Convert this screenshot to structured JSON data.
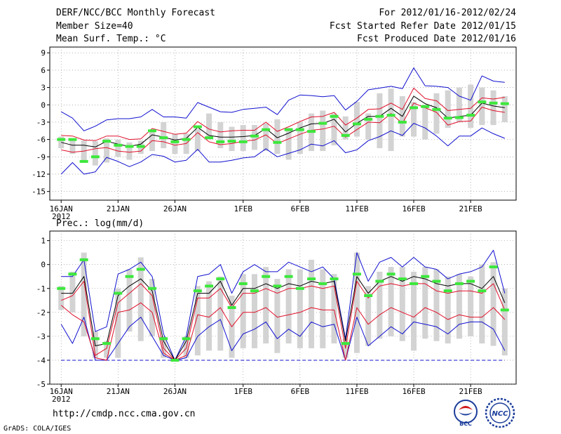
{
  "header": {
    "title": "DERF/NCC/BCC Monthly Forecast",
    "member_size": "Member Size=40",
    "variable": "Mean Surf. Temp.: °C",
    "period": "For 2012/01/16-2012/02/24",
    "fcst_started": "Fcst Started Refer Date 2012/01/15",
    "fcst_produced": "Fcst Produced Date 2012/01/16"
  },
  "footer": {
    "url": "http://cmdp.ncc.cma.gov.cn",
    "credit": "GrADS: COLA/IGES",
    "logos": [
      {
        "name": "bcc-logo",
        "text": "BCC"
      },
      {
        "name": "ncc-logo",
        "text": "NCC"
      }
    ]
  },
  "colors": {
    "box": "#d3d3d3",
    "mean": "#000000",
    "inner": "#e0102a",
    "outer": "#1010d0",
    "obs": "#3ce83c",
    "grid": "#888888"
  },
  "chart_data": [
    {
      "type": "line",
      "name": "temperature-panel",
      "title": "Mean Surf. Temp.: °C",
      "x_ticks": [
        {
          "day": 0,
          "label": "16JAN",
          "sub": "2012"
        },
        {
          "day": 5,
          "label": "21JAN"
        },
        {
          "day": 10,
          "label": "26JAN"
        },
        {
          "day": 16,
          "label": "1FEB"
        },
        {
          "day": 21,
          "label": "6FEB"
        },
        {
          "day": 26,
          "label": "11FEB"
        },
        {
          "day": 31,
          "label": "16FEB"
        },
        {
          "day": 36,
          "label": "21FEB"
        }
      ],
      "y_ticks": [
        9,
        6,
        3,
        0,
        -3,
        -6,
        -9,
        -12,
        -15
      ],
      "xlim": [
        -1,
        40
      ],
      "ylim": [
        -16.5,
        10
      ],
      "series": [
        {
          "name": "box-max",
          "values": [
            -5.5,
            -5.8,
            -6.2,
            -6.3,
            -5.8,
            -6.0,
            -6.5,
            -6.2,
            -4.5,
            -3.0,
            -5.0,
            -5.0,
            -4.2,
            -1.5,
            -3.0,
            -3.8,
            -3.5,
            -3.5,
            -3.2,
            -2.5,
            -4.0,
            -3.0,
            -1.5,
            -1.0,
            -1.5,
            -2.0,
            0.5,
            -1.5,
            2.0,
            2.8,
            1.5,
            0.5,
            0.0,
            2.0,
            2.5,
            3.0,
            3.5,
            3.0,
            2.5,
            1.5
          ]
        },
        {
          "name": "box-min",
          "values": [
            -7.5,
            -8.5,
            -10.0,
            -10.5,
            -10.0,
            -9.0,
            -9.5,
            -8.5,
            -8.0,
            -7.5,
            -8.5,
            -8.5,
            -8.0,
            -6.0,
            -7.5,
            -8.0,
            -8.0,
            -7.8,
            -8.0,
            -8.5,
            -9.5,
            -8.5,
            -8.0,
            -8.0,
            -7.0,
            -6.0,
            -5.5,
            -6.0,
            -7.5,
            -8.0,
            -5.5,
            -5.5,
            -6.0,
            -5.0,
            -4.0,
            -3.0,
            -4.0,
            -3.5,
            -3.5,
            -3.0
          ]
        },
        {
          "name": "mean",
          "values": [
            -6.5,
            -7.0,
            -7.0,
            -7.3,
            -6.3,
            -6.8,
            -7.2,
            -6.8,
            -5.2,
            -5.6,
            -6.1,
            -5.8,
            -3.9,
            -5.3,
            -5.6,
            -5.6,
            -5.5,
            -5.3,
            -4.1,
            -5.7,
            -4.9,
            -4.0,
            -3.3,
            -3.2,
            -2.5,
            -4.7,
            -3.2,
            -2.0,
            -2.0,
            -0.6,
            -2.0,
            1.5,
            0.2,
            -0.5,
            -2.3,
            -2.0,
            -1.8,
            0.3,
            -0.2,
            -0.5
          ]
        },
        {
          "name": "upper-inner",
          "values": [
            -5.3,
            -5.4,
            -6.1,
            -6.2,
            -5.4,
            -5.4,
            -6.0,
            -5.9,
            -4.1,
            -4.6,
            -5.1,
            -4.9,
            -2.9,
            -4.2,
            -4.7,
            -4.5,
            -4.4,
            -4.4,
            -3.0,
            -4.6,
            -3.8,
            -2.9,
            -2.1,
            -2.0,
            -1.3,
            -3.5,
            -2.3,
            -0.8,
            -0.7,
            0.3,
            -0.8,
            2.9,
            1.1,
            0.7,
            -1.0,
            -0.8,
            -0.6,
            1.2,
            1.0,
            1.3
          ]
        },
        {
          "name": "lower-inner",
          "values": [
            -7.8,
            -8.2,
            -8.0,
            -7.6,
            -7.4,
            -8.0,
            -8.2,
            -8.0,
            -6.2,
            -6.4,
            -7.0,
            -6.7,
            -4.8,
            -6.4,
            -6.9,
            -6.7,
            -6.3,
            -6.1,
            -5.2,
            -6.7,
            -5.9,
            -5.1,
            -4.4,
            -4.2,
            -3.7,
            -5.6,
            -4.3,
            -3.0,
            -3.1,
            -1.5,
            -3.2,
            0.3,
            -0.5,
            -1.3,
            -3.5,
            -2.9,
            -2.8,
            -0.4,
            -1.0,
            -1.3
          ]
        },
        {
          "name": "upper-outer",
          "values": [
            -1.2,
            -2.3,
            -4.5,
            -3.7,
            -2.6,
            -2.4,
            -2.4,
            -2.1,
            -0.8,
            -2.1,
            -2.1,
            -2.3,
            0.4,
            -0.4,
            -1.2,
            -1.3,
            -0.8,
            -0.6,
            -0.4,
            -1.7,
            0.8,
            1.7,
            1.6,
            1.4,
            1.6,
            -0.9,
            0.6,
            2.6,
            2.9,
            3.2,
            2.8,
            6.4,
            3.3,
            3.2,
            3.0,
            1.5,
            0.8,
            5.0,
            4.1,
            3.9
          ]
        },
        {
          "name": "lower-outer",
          "values": [
            -12.0,
            -10.0,
            -12.0,
            -11.6,
            -9.1,
            -9.8,
            -10.7,
            -9.9,
            -8.6,
            -8.9,
            -9.9,
            -9.6,
            -7.7,
            -9.9,
            -9.9,
            -9.6,
            -9.2,
            -9.0,
            -7.6,
            -9.0,
            -8.4,
            -7.8,
            -6.8,
            -7.1,
            -6.2,
            -8.3,
            -7.8,
            -6.2,
            -5.5,
            -4.5,
            -5.3,
            -3.2,
            -4.0,
            -5.4,
            -7.1,
            -5.4,
            -5.4,
            -4.0,
            -5.0,
            -5.8
          ]
        },
        {
          "name": "obs",
          "values": [
            -6.0,
            -6.0,
            -9.8,
            -9.0,
            -6.3,
            -7.0,
            -7.2,
            -7.2,
            -4.5,
            -5.7,
            -6.4,
            -6.0,
            -3.8,
            -5.7,
            -6.4,
            -6.3,
            -6.4,
            -5.4,
            -4.3,
            -6.5,
            -4.3,
            -4.3,
            -4.6,
            -3.2,
            -2.0,
            -5.3,
            -3.3,
            -2.5,
            -2.0,
            -1.8,
            -3.0,
            -0.5,
            -0.3,
            -0.8,
            -2.3,
            -2.2,
            -1.8,
            0.5,
            0.3,
            0.2
          ]
        }
      ]
    },
    {
      "type": "line",
      "name": "precipitation-panel",
      "title": "Prec.: log(mm/d)",
      "x_ticks": [
        {
          "day": 0,
          "label": "16JAN",
          "sub": "2012"
        },
        {
          "day": 5,
          "label": "21JAN"
        },
        {
          "day": 10,
          "label": "26JAN"
        },
        {
          "day": 16,
          "label": "1FEB"
        },
        {
          "day": 21,
          "label": "6FEB"
        },
        {
          "day": 26,
          "label": "11FEB"
        },
        {
          "day": 31,
          "label": "16FEB"
        },
        {
          "day": 36,
          "label": "21FEB"
        }
      ],
      "y_ticks": [
        1,
        0,
        -1,
        -2,
        -3,
        -4,
        -5
      ],
      "xlim": [
        -1,
        40
      ],
      "ylim": [
        -5,
        1.4
      ],
      "series": [
        {
          "name": "box-max",
          "values": [
            -0.9,
            -0.3,
            0.5,
            -2.8,
            -3.2,
            -1.0,
            -0.2,
            0.3,
            -0.6,
            -3.0,
            -4.0,
            -3.0,
            -0.9,
            -0.7,
            -0.5,
            -1.3,
            -0.4,
            -0.4,
            -0.1,
            -0.6,
            -0.2,
            -0.2,
            0.2,
            -0.2,
            -0.4,
            -3.1,
            0.5,
            -0.9,
            -0.3,
            -0.1,
            -0.1,
            -0.3,
            -0.1,
            -0.2,
            -0.5,
            -0.4,
            -0.5,
            0.0,
            0.1,
            -1.0
          ]
        },
        {
          "name": "box-min",
          "values": [
            -1.9,
            -2.0,
            -3.0,
            -3.9,
            -3.9,
            -3.9,
            -2.8,
            -3.2,
            -3.0,
            -3.9,
            -4.0,
            -3.9,
            -3.8,
            -3.6,
            -3.6,
            -3.9,
            -3.5,
            -3.5,
            -3.3,
            -3.7,
            -3.3,
            -3.5,
            -3.5,
            -3.5,
            -3.3,
            -3.9,
            -3.7,
            -3.4,
            -3.1,
            -3.0,
            -3.2,
            -3.6,
            -3.1,
            -3.2,
            -3.3,
            -3.1,
            -3.0,
            -3.3,
            -3.4,
            -3.8
          ]
        },
        {
          "name": "mean",
          "values": [
            -1.2,
            -1.2,
            -0.5,
            -3.4,
            -3.3,
            -1.3,
            -0.9,
            -0.6,
            -1.1,
            -3.2,
            -4.0,
            -3.2,
            -1.2,
            -1.2,
            -0.7,
            -1.7,
            -1.0,
            -1.0,
            -0.8,
            -1.0,
            -0.8,
            -0.9,
            -0.7,
            -0.8,
            -0.7,
            -3.2,
            -0.5,
            -1.2,
            -0.7,
            -0.5,
            -0.7,
            -0.5,
            -0.6,
            -0.8,
            -0.9,
            -0.8,
            -0.8,
            -1.0,
            -0.5,
            -1.6
          ]
        },
        {
          "name": "upper-inner",
          "values": [
            -1.5,
            -1.3,
            -0.7,
            -3.8,
            -3.5,
            -1.6,
            -1.2,
            -0.8,
            -1.3,
            -3.5,
            -4.0,
            -3.5,
            -1.4,
            -1.4,
            -1.0,
            -1.8,
            -1.2,
            -1.2,
            -1.0,
            -1.2,
            -1.0,
            -1.0,
            -0.9,
            -1.0,
            -0.9,
            -3.5,
            -0.7,
            -1.4,
            -0.9,
            -0.8,
            -0.9,
            -0.8,
            -0.8,
            -1.1,
            -1.2,
            -1.1,
            -1.1,
            -1.2,
            -0.8,
            -1.9
          ]
        },
        {
          "name": "lower-inner",
          "values": [
            -1.7,
            -2.1,
            -2.4,
            -3.9,
            -4.0,
            -2.0,
            -1.9,
            -1.6,
            -2.0,
            -3.7,
            -4.0,
            -3.8,
            -2.1,
            -2.2,
            -1.8,
            -2.6,
            -2.0,
            -2.0,
            -1.8,
            -2.2,
            -2.1,
            -2.0,
            -1.8,
            -1.9,
            -1.9,
            -4.0,
            -1.8,
            -2.5,
            -2.1,
            -1.8,
            -2.0,
            -2.2,
            -1.8,
            -2.0,
            -2.3,
            -2.1,
            -2.2,
            -2.2,
            -1.8,
            -2.3
          ]
        },
        {
          "name": "upper-outer",
          "values": [
            -0.5,
            -0.5,
            0.2,
            -2.8,
            -2.6,
            -0.4,
            -0.2,
            0.1,
            -0.5,
            -2.9,
            -4.0,
            -3.0,
            -0.5,
            -0.4,
            0.0,
            -1.2,
            -0.3,
            0.0,
            -0.3,
            -0.3,
            0.1,
            -0.1,
            -0.3,
            -0.1,
            -0.6,
            -3.1,
            0.5,
            -0.7,
            0.1,
            0.3,
            -0.1,
            0.3,
            -0.1,
            -0.2,
            -0.6,
            -0.4,
            -0.3,
            -0.1,
            0.6,
            -1.2
          ]
        },
        {
          "name": "lower-outer",
          "values": [
            -2.5,
            -3.3,
            -2.2,
            -4.0,
            -4.0,
            -3.3,
            -2.6,
            -2.2,
            -3.0,
            -3.8,
            -4.0,
            -3.9,
            -3.0,
            -2.6,
            -2.3,
            -3.6,
            -2.9,
            -2.7,
            -2.4,
            -3.1,
            -2.7,
            -3.0,
            -2.4,
            -2.6,
            -2.5,
            -4.0,
            -2.2,
            -3.4,
            -3.0,
            -2.6,
            -2.9,
            -2.4,
            -2.5,
            -2.6,
            -2.9,
            -2.5,
            -2.4,
            -2.4,
            -2.7,
            -3.6
          ]
        },
        {
          "name": "obs",
          "values": [
            -1.0,
            -0.4,
            0.2,
            -3.1,
            -3.3,
            -1.2,
            -0.5,
            -0.2,
            -1.0,
            -3.1,
            -4.0,
            -3.1,
            -1.1,
            -0.9,
            -0.6,
            -1.8,
            -0.8,
            -1.1,
            -0.5,
            -0.9,
            -0.5,
            -1.0,
            -0.6,
            -0.8,
            -0.6,
            -3.3,
            -0.4,
            -1.3,
            -0.7,
            -0.4,
            -0.6,
            -0.8,
            -0.5,
            -0.7,
            -1.1,
            -0.8,
            -0.7,
            -1.1,
            -0.1,
            -1.9
          ]
        },
        {
          "name": "floor",
          "values": [
            -4.0,
            -4.0
          ]
        }
      ]
    }
  ]
}
